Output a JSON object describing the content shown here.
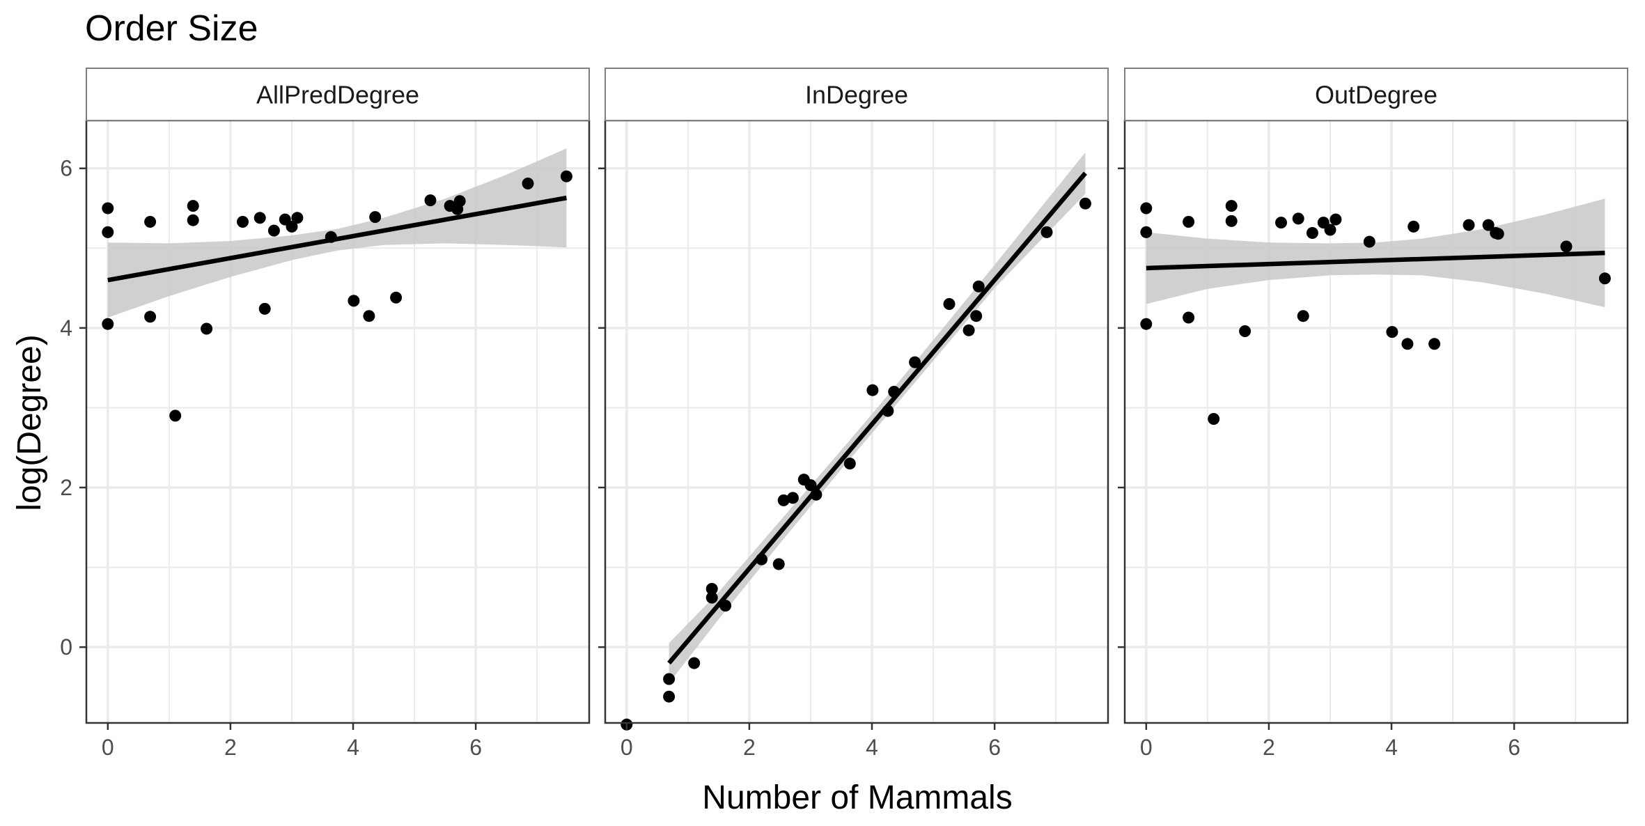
{
  "chart_data": {
    "type": "scatter",
    "title": "Order Size",
    "xlabel": "Number of Mammals",
    "ylabel": "log(Degree)",
    "grid": true,
    "legend": "none",
    "xlim": [
      -0.35,
      7.85
    ],
    "ylim": [
      -0.95,
      6.6
    ],
    "x_ticks": [
      0,
      2,
      4,
      6
    ],
    "y_ticks": [
      0,
      2,
      4,
      6
    ],
    "colors": {
      "points": "#000000",
      "fit_line": "#000000",
      "confidence_band": "#c8c8c8",
      "strip_fill": "#ffffff",
      "grid": "#ebebeb",
      "panel_border": "#333333"
    },
    "panels": [
      {
        "name": "AllPredDegree",
        "fit": {
          "x": [
            0,
            7.48
          ],
          "y": [
            4.6,
            5.63
          ]
        },
        "band": {
          "x": [
            0,
            1,
            2,
            3,
            3.74,
            4.5,
            5.5,
            6.5,
            7.48
          ],
          "upper": [
            5.07,
            5.06,
            5.09,
            5.16,
            5.24,
            5.38,
            5.62,
            5.92,
            6.25
          ],
          "lower": [
            4.13,
            4.4,
            4.64,
            4.85,
            4.97,
            5.04,
            5.06,
            5.04,
            5.01
          ]
        },
        "points": [
          [
            0,
            5.5
          ],
          [
            0,
            5.2
          ],
          [
            0,
            4.05
          ],
          [
            0.69,
            5.33
          ],
          [
            0.69,
            4.14
          ],
          [
            1.1,
            2.9
          ],
          [
            1.39,
            5.53
          ],
          [
            1.39,
            5.35
          ],
          [
            1.61,
            3.99
          ],
          [
            2.2,
            5.33
          ],
          [
            2.48,
            5.38
          ],
          [
            2.56,
            4.24
          ],
          [
            2.71,
            5.22
          ],
          [
            2.89,
            5.36
          ],
          [
            3.0,
            5.27
          ],
          [
            3.09,
            5.38
          ],
          [
            3.64,
            5.14
          ],
          [
            4.01,
            4.34
          ],
          [
            4.26,
            4.15
          ],
          [
            4.36,
            5.39
          ],
          [
            4.7,
            4.38
          ],
          [
            5.26,
            5.6
          ],
          [
            5.58,
            5.53
          ],
          [
            5.7,
            5.49
          ],
          [
            5.74,
            5.59
          ],
          [
            6.85,
            5.81
          ],
          [
            7.48,
            5.9
          ]
        ]
      },
      {
        "name": "InDegree",
        "fit": {
          "x": [
            0.69,
            7.48
          ],
          "y": [
            -0.2,
            5.94
          ]
        },
        "band": {
          "x": [
            0.69,
            1.5,
            2.5,
            3.5,
            4.1,
            5,
            6,
            7.48
          ],
          "upper": [
            0.05,
            0.69,
            1.58,
            2.47,
            3.01,
            3.85,
            4.79,
            6.2
          ],
          "lower": [
            -0.45,
            0.35,
            1.3,
            2.23,
            2.77,
            3.59,
            4.5,
            5.68
          ]
        },
        "points": [
          [
            0,
            -0.97
          ],
          [
            0.69,
            -0.4
          ],
          [
            0.69,
            -0.62
          ],
          [
            1.1,
            -0.2
          ],
          [
            1.39,
            0.73
          ],
          [
            1.39,
            0.62
          ],
          [
            1.61,
            0.52
          ],
          [
            2.2,
            1.1
          ],
          [
            2.48,
            1.04
          ],
          [
            2.56,
            1.84
          ],
          [
            2.71,
            1.87
          ],
          [
            2.89,
            2.1
          ],
          [
            3.0,
            2.03
          ],
          [
            3.09,
            1.91
          ],
          [
            3.64,
            2.3
          ],
          [
            4.01,
            3.22
          ],
          [
            4.26,
            2.96
          ],
          [
            4.36,
            3.2
          ],
          [
            4.7,
            3.57
          ],
          [
            5.26,
            4.3
          ],
          [
            5.58,
            3.97
          ],
          [
            5.7,
            4.15
          ],
          [
            5.74,
            4.52
          ],
          [
            6.85,
            5.2
          ],
          [
            7.48,
            5.56
          ]
        ]
      },
      {
        "name": "OutDegree",
        "fit": {
          "x": [
            0,
            7.48
          ],
          "y": [
            4.75,
            4.94
          ]
        },
        "band": {
          "x": [
            0,
            1,
            2,
            3,
            3.74,
            4.5,
            5.5,
            6.5,
            7.48
          ],
          "upper": [
            5.2,
            5.12,
            5.07,
            5.06,
            5.07,
            5.12,
            5.24,
            5.42,
            5.62
          ],
          "lower": [
            4.3,
            4.49,
            4.6,
            4.66,
            4.67,
            4.66,
            4.57,
            4.43,
            4.26
          ]
        },
        "points": [
          [
            0,
            5.5
          ],
          [
            0,
            5.2
          ],
          [
            0,
            4.05
          ],
          [
            0.69,
            5.33
          ],
          [
            0.69,
            4.13
          ],
          [
            1.1,
            2.86
          ],
          [
            1.39,
            5.53
          ],
          [
            1.39,
            5.34
          ],
          [
            1.61,
            3.96
          ],
          [
            2.2,
            5.32
          ],
          [
            2.48,
            5.37
          ],
          [
            2.56,
            4.15
          ],
          [
            2.71,
            5.19
          ],
          [
            2.89,
            5.32
          ],
          [
            3.0,
            5.23
          ],
          [
            3.09,
            5.36
          ],
          [
            3.64,
            5.08
          ],
          [
            4.01,
            3.95
          ],
          [
            4.26,
            3.8
          ],
          [
            4.36,
            5.27
          ],
          [
            4.7,
            3.8
          ],
          [
            5.26,
            5.29
          ],
          [
            5.58,
            5.29
          ],
          [
            5.7,
            5.19
          ],
          [
            5.74,
            5.18
          ],
          [
            6.85,
            5.02
          ],
          [
            7.48,
            4.62
          ]
        ]
      }
    ]
  }
}
